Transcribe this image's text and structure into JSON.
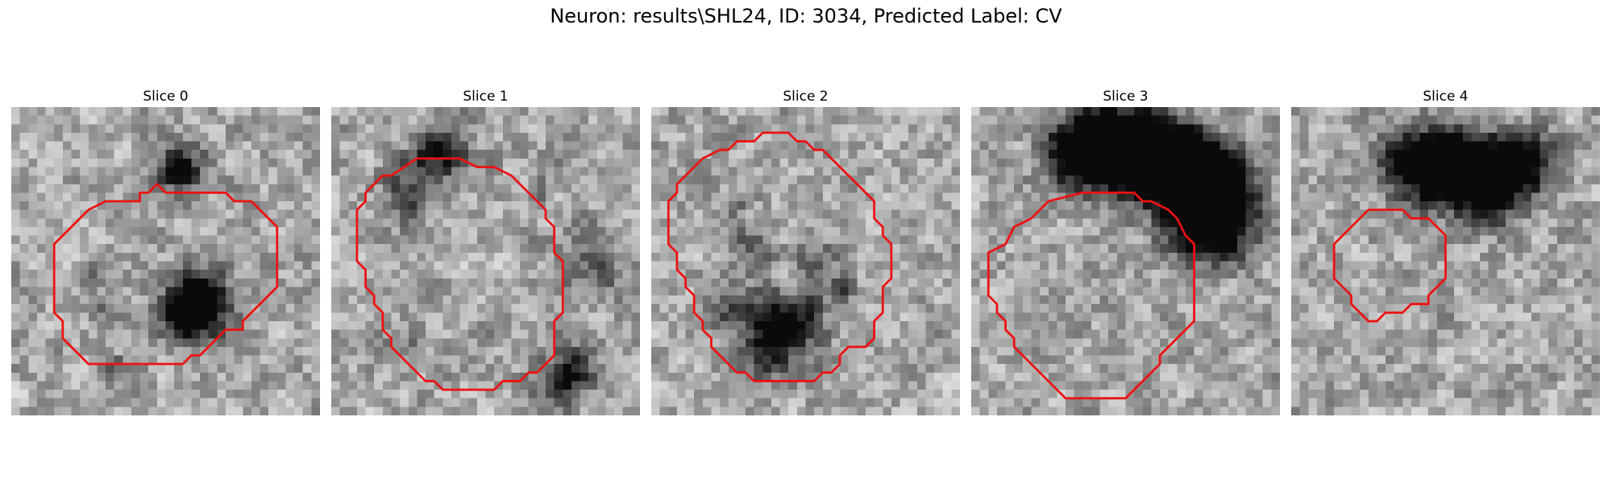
{
  "figure": {
    "title": "Neuron: results\\SHL24, ID: 3034, Predicted Label: CV"
  },
  "colors": {
    "contour": "#ee1111"
  },
  "panels": [
    {
      "title": "Slice 0",
      "contour": [
        [
          15,
          10
        ],
        [
          16,
          10
        ],
        [
          17,
          9
        ],
        [
          18,
          10
        ],
        [
          20,
          10
        ],
        [
          22,
          10
        ],
        [
          25,
          10
        ],
        [
          26,
          11
        ],
        [
          28,
          11
        ],
        [
          31,
          14
        ],
        [
          31,
          21
        ],
        [
          27,
          25
        ],
        [
          27,
          26
        ],
        [
          25,
          26
        ],
        [
          23,
          28
        ],
        [
          22,
          29
        ],
        [
          21,
          29
        ],
        [
          20,
          30
        ],
        [
          15,
          30
        ],
        [
          9,
          30
        ],
        [
          8,
          29
        ],
        [
          7,
          28
        ],
        [
          6,
          27
        ],
        [
          6,
          25
        ],
        [
          5,
          24
        ],
        [
          5,
          16
        ],
        [
          9,
          12
        ],
        [
          11,
          11
        ],
        [
          15,
          11
        ]
      ],
      "dark": [
        [
          21,
          22,
          2
        ],
        [
          22,
          23,
          3
        ],
        [
          21,
          24,
          2
        ],
        [
          20,
          23,
          2
        ],
        [
          19,
          24,
          2
        ],
        [
          22,
          21,
          2
        ],
        [
          19,
          6,
          2
        ],
        [
          20,
          7,
          2
        ],
        [
          18,
          7,
          1
        ],
        [
          9,
          18,
          1
        ],
        [
          10,
          23,
          1
        ],
        [
          12,
          30,
          1
        ]
      ]
    },
    {
      "title": "Slice 1",
      "contour": [
        [
          7,
          8
        ],
        [
          10,
          6
        ],
        [
          11,
          6
        ],
        [
          15,
          6
        ],
        [
          17,
          7
        ],
        [
          19,
          7
        ],
        [
          21,
          8
        ],
        [
          25,
          12
        ],
        [
          25,
          13
        ],
        [
          26,
          14
        ],
        [
          26,
          17
        ],
        [
          27,
          18
        ],
        [
          27,
          24
        ],
        [
          26,
          25
        ],
        [
          26,
          29
        ],
        [
          24,
          31
        ],
        [
          23,
          31
        ],
        [
          22,
          32
        ],
        [
          20,
          32
        ],
        [
          19,
          33
        ],
        [
          13,
          33
        ],
        [
          12,
          32
        ],
        [
          11,
          32
        ],
        [
          10,
          31
        ],
        [
          9,
          30
        ],
        [
          7,
          28
        ],
        [
          7,
          27
        ],
        [
          6,
          26
        ],
        [
          6,
          24
        ],
        [
          5,
          23
        ],
        [
          5,
          22
        ],
        [
          4,
          21
        ],
        [
          4,
          19
        ],
        [
          3,
          18
        ],
        [
          3,
          12
        ],
        [
          4,
          11
        ],
        [
          4,
          10
        ],
        [
          6,
          8
        ]
      ],
      "dark": [
        [
          12,
          5,
          2
        ],
        [
          13,
          4,
          2
        ],
        [
          10,
          7,
          2
        ],
        [
          8,
          10,
          2
        ],
        [
          9,
          12,
          1
        ],
        [
          30,
          18,
          3
        ],
        [
          27,
          30,
          2
        ],
        [
          28,
          31,
          2
        ],
        [
          25,
          33,
          2
        ],
        [
          5,
          28,
          1
        ],
        [
          9,
          27,
          1
        ],
        [
          26,
          6,
          1
        ],
        [
          24,
          9,
          1
        ]
      ]
    },
    {
      "title": "Slice 2",
      "contour": [
        [
          6,
          6
        ],
        [
          8,
          5
        ],
        [
          9,
          5
        ],
        [
          10,
          4
        ],
        [
          12,
          4
        ],
        [
          13,
          3
        ],
        [
          16,
          3
        ],
        [
          17,
          4
        ],
        [
          18,
          4
        ],
        [
          19,
          5
        ],
        [
          20,
          5
        ],
        [
          23,
          8
        ],
        [
          24,
          9
        ],
        [
          25,
          10
        ],
        [
          26,
          11
        ],
        [
          26,
          13
        ],
        [
          27,
          14
        ],
        [
          27,
          15
        ],
        [
          28,
          16
        ],
        [
          28,
          20
        ],
        [
          27,
          21
        ],
        [
          27,
          24
        ],
        [
          26,
          25
        ],
        [
          26,
          27
        ],
        [
          25,
          28
        ],
        [
          23,
          28
        ],
        [
          22,
          29
        ],
        [
          22,
          30
        ],
        [
          21,
          31
        ],
        [
          20,
          31
        ],
        [
          19,
          32
        ],
        [
          12,
          32
        ],
        [
          11,
          31
        ],
        [
          10,
          31
        ],
        [
          9,
          30
        ],
        [
          8,
          29
        ],
        [
          7,
          28
        ],
        [
          7,
          27
        ],
        [
          6,
          26
        ],
        [
          6,
          25
        ],
        [
          5,
          24
        ],
        [
          5,
          22
        ],
        [
          4,
          21
        ],
        [
          4,
          20
        ],
        [
          3,
          19
        ],
        [
          3,
          17
        ],
        [
          2,
          16
        ],
        [
          2,
          11
        ],
        [
          3,
          10
        ],
        [
          3,
          9
        ],
        [
          5,
          7
        ]
      ],
      "dark": [
        [
          14,
          25,
          3
        ],
        [
          15,
          26,
          2
        ],
        [
          13,
          24,
          2
        ],
        [
          17,
          24,
          2
        ],
        [
          11,
          16,
          2
        ],
        [
          19,
          18,
          2
        ],
        [
          22,
          21,
          1
        ],
        [
          8,
          23,
          2
        ],
        [
          13,
          29,
          2
        ],
        [
          20,
          29,
          1
        ],
        [
          9,
          11,
          1
        ]
      ]
    },
    {
      "title": "Slice 3",
      "contour": [
        [
          9,
          11
        ],
        [
          13,
          10
        ],
        [
          19,
          10
        ],
        [
          20,
          11
        ],
        [
          21,
          11
        ],
        [
          23,
          12
        ],
        [
          24,
          13
        ],
        [
          25,
          15
        ],
        [
          26,
          16
        ],
        [
          26,
          25
        ],
        [
          22,
          29
        ],
        [
          22,
          30
        ],
        [
          18,
          34
        ],
        [
          11,
          34
        ],
        [
          10,
          33
        ],
        [
          9,
          32
        ],
        [
          8,
          31
        ],
        [
          7,
          30
        ],
        [
          6,
          29
        ],
        [
          5,
          28
        ],
        [
          5,
          27
        ],
        [
          4,
          26
        ],
        [
          4,
          25
        ],
        [
          3,
          24
        ],
        [
          3,
          23
        ],
        [
          2,
          22
        ],
        [
          2,
          17
        ],
        [
          4,
          16
        ],
        [
          5,
          14
        ],
        [
          7,
          13
        ],
        [
          8,
          12
        ]
      ],
      "dark": [
        [
          12,
          3,
          3
        ],
        [
          13,
          4,
          3
        ],
        [
          14,
          5,
          3
        ],
        [
          18,
          3,
          3
        ],
        [
          19,
          4,
          3
        ],
        [
          20,
          5,
          3
        ],
        [
          23,
          6,
          3
        ],
        [
          24,
          7,
          3
        ],
        [
          25,
          8,
          3
        ],
        [
          26,
          9,
          3
        ],
        [
          27,
          10,
          3
        ],
        [
          28,
          11,
          3
        ],
        [
          29,
          12,
          3
        ],
        [
          27,
          13,
          3
        ],
        [
          28,
          14,
          3
        ],
        [
          17,
          8,
          2
        ],
        [
          21,
          9,
          2
        ],
        [
          26,
          12,
          3
        ],
        [
          11,
          6,
          2
        ],
        [
          16,
          4,
          3
        ],
        [
          22,
          4,
          2
        ],
        [
          25,
          4,
          2
        ],
        [
          29,
          6,
          2
        ],
        [
          30,
          9,
          2
        ]
      ]
    },
    {
      "title": "Slice 4",
      "contour": [
        [
          12,
          12
        ],
        [
          13,
          12
        ],
        [
          14,
          13
        ],
        [
          16,
          13
        ],
        [
          18,
          15
        ],
        [
          18,
          20
        ],
        [
          16,
          22
        ],
        [
          16,
          23
        ],
        [
          14,
          23
        ],
        [
          13,
          24
        ],
        [
          11,
          24
        ],
        [
          10,
          25
        ],
        [
          9,
          25
        ],
        [
          8,
          24
        ],
        [
          7,
          23
        ],
        [
          7,
          22
        ],
        [
          6,
          21
        ],
        [
          5,
          20
        ],
        [
          5,
          16
        ],
        [
          8,
          13
        ],
        [
          9,
          12
        ],
        [
          10,
          12
        ]
      ],
      "dark": [
        [
          14,
          7,
          3
        ],
        [
          15,
          6,
          3
        ],
        [
          17,
          6,
          2
        ],
        [
          18,
          7,
          3
        ],
        [
          20,
          8,
          3
        ],
        [
          21,
          7,
          3
        ],
        [
          22,
          9,
          2
        ],
        [
          25,
          5,
          2
        ],
        [
          26,
          6,
          2
        ],
        [
          24,
          7,
          3
        ],
        [
          27,
          8,
          2
        ],
        [
          12,
          6,
          2
        ],
        [
          23,
          11,
          2
        ],
        [
          19,
          4,
          1
        ],
        [
          28,
          5,
          2
        ],
        [
          17,
          23,
          1
        ]
      ]
    }
  ]
}
